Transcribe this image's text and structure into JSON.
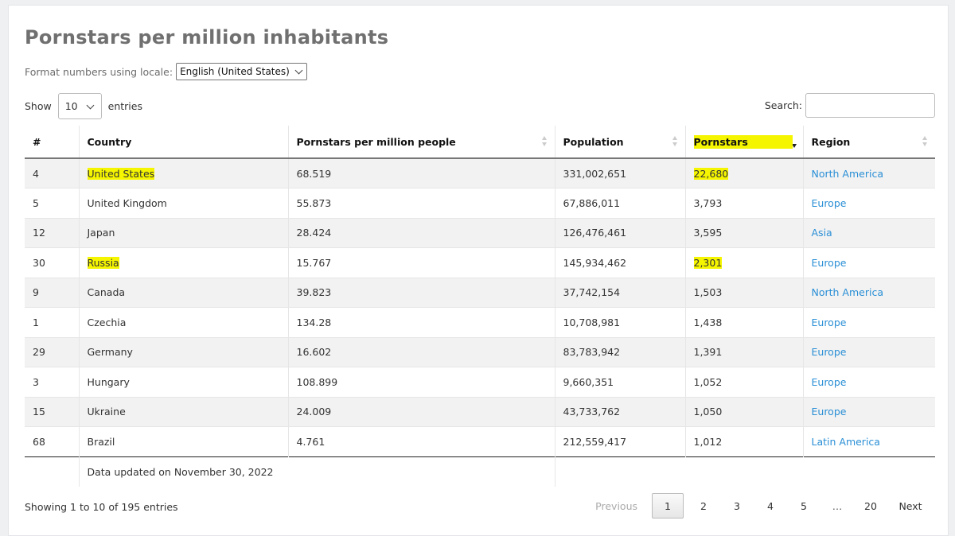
{
  "title": "Pornstars per million inhabitants",
  "locale": {
    "label": "Format numbers using locale:",
    "selected": "English (United States)"
  },
  "length": {
    "show_label": "Show",
    "value": "10",
    "entries_label": "entries"
  },
  "search": {
    "label": "Search:",
    "value": ""
  },
  "columns": [
    "#",
    "Country",
    "Pornstars per million people",
    "Population",
    "Pornstars",
    "Region"
  ],
  "rows": [
    {
      "rank": "4",
      "country": "United States",
      "per_million": "68.519",
      "population": "331,002,651",
      "pornstars": "22,680",
      "region": "North America"
    },
    {
      "rank": "5",
      "country": "United Kingdom",
      "per_million": "55.873",
      "population": "67,886,011",
      "pornstars": "3,793",
      "region": "Europe"
    },
    {
      "rank": "12",
      "country": "Japan",
      "per_million": "28.424",
      "population": "126,476,461",
      "pornstars": "3,595",
      "region": "Asia"
    },
    {
      "rank": "30",
      "country": "Russia",
      "per_million": "15.767",
      "population": "145,934,462",
      "pornstars": "2,301",
      "region": "Europe"
    },
    {
      "rank": "9",
      "country": "Canada",
      "per_million": "39.823",
      "population": "37,742,154",
      "pornstars": "1,503",
      "region": "North America"
    },
    {
      "rank": "1",
      "country": "Czechia",
      "per_million": "134.28",
      "population": "10,708,981",
      "pornstars": "1,438",
      "region": "Europe"
    },
    {
      "rank": "29",
      "country": "Germany",
      "per_million": "16.602",
      "population": "83,783,942",
      "pornstars": "1,391",
      "region": "Europe"
    },
    {
      "rank": "3",
      "country": "Hungary",
      "per_million": "108.899",
      "population": "9,660,351",
      "pornstars": "1,052",
      "region": "Europe"
    },
    {
      "rank": "15",
      "country": "Ukraine",
      "per_million": "24.009",
      "population": "43,733,762",
      "pornstars": "1,050",
      "region": "Europe"
    },
    {
      "rank": "68",
      "country": "Brazil",
      "per_million": "4.761",
      "population": "212,559,417",
      "pornstars": "1,012",
      "region": "Latin America"
    }
  ],
  "footer_note": "Data updated on November 30, 2022",
  "info": "Showing 1 to 10 of 195 entries",
  "pagination": {
    "previous": "Previous",
    "pages": [
      "1",
      "2",
      "3",
      "4",
      "5"
    ],
    "ellipsis": "…",
    "last": "20",
    "next": "Next"
  },
  "colors": {
    "highlight": "#f5f500",
    "link": "#2a8fd6",
    "title": "#707070"
  }
}
